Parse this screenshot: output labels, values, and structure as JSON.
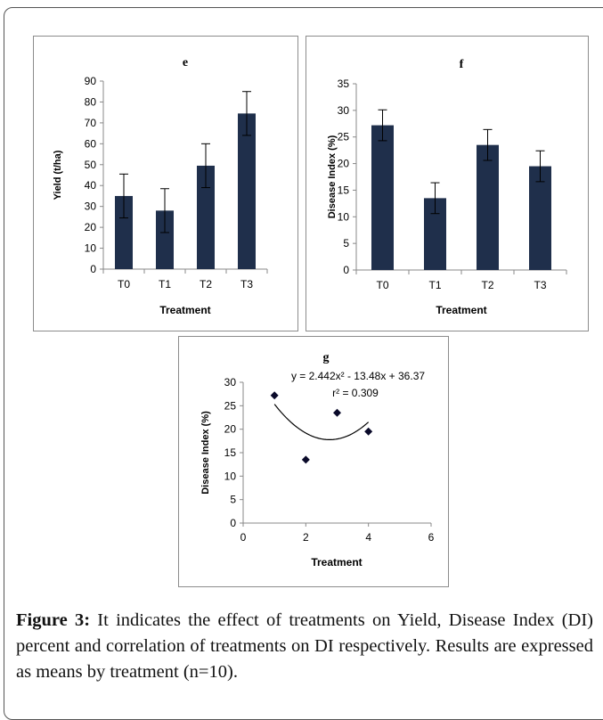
{
  "chart_data": [
    {
      "type": "bar",
      "title": "e",
      "xlabel": "Treatment",
      "ylabel": "Yield  (t/ha)",
      "categories": [
        "T0",
        "T1",
        "T2",
        "T3"
      ],
      "values": [
        35,
        28,
        49.5,
        74.5
      ],
      "error": [
        10.5,
        10.5,
        10.5,
        10.5
      ],
      "ylim": [
        0,
        90
      ],
      "yticks": [
        0,
        10,
        20,
        30,
        40,
        50,
        60,
        70,
        80,
        90
      ],
      "colors": {
        "bar": "#1f2f4b"
      },
      "grid": false,
      "legend": "none"
    },
    {
      "type": "bar",
      "title": "f",
      "xlabel": "Treatment",
      "ylabel": "Disease Index  (%)",
      "categories": [
        "T0",
        "T1",
        "T2",
        "T3"
      ],
      "values": [
        27.2,
        13.5,
        23.5,
        19.5
      ],
      "error": [
        2.9,
        2.9,
        2.9,
        2.9
      ],
      "ylim": [
        0,
        35
      ],
      "yticks": [
        0,
        5,
        10,
        15,
        20,
        25,
        30,
        35
      ],
      "colors": {
        "bar": "#1f2f4b"
      },
      "grid": false,
      "legend": "none"
    },
    {
      "type": "scatter",
      "title": "g",
      "xlabel": "Treatment",
      "ylabel": "Disease Index (%)",
      "x": [
        1,
        2,
        3,
        4
      ],
      "y": [
        27.2,
        13.5,
        23.5,
        19.5
      ],
      "xlim": [
        0,
        6
      ],
      "ylim": [
        0,
        30
      ],
      "xticks": [
        0,
        2,
        4,
        6
      ],
      "yticks": [
        0,
        5,
        10,
        15,
        20,
        25,
        30
      ],
      "trendline": {
        "type": "polynomial",
        "a": 2.442,
        "b": -13.48,
        "c": 36.37,
        "range": [
          1,
          4
        ]
      },
      "equation": "y = 2.442x² - 13.48x + 36.37",
      "r2": "r² = 0.309",
      "colors": {
        "marker": "#0a0a2a",
        "line": "#000000"
      },
      "grid": false,
      "legend": "none"
    }
  ],
  "caption": {
    "label": "Figure 3:",
    "text": " It indicates the effect of treatments on Yield, Disease Index (DI) percent and correlation of treatments on DI respectively. Results are expressed as means by treatment (n=10)."
  }
}
